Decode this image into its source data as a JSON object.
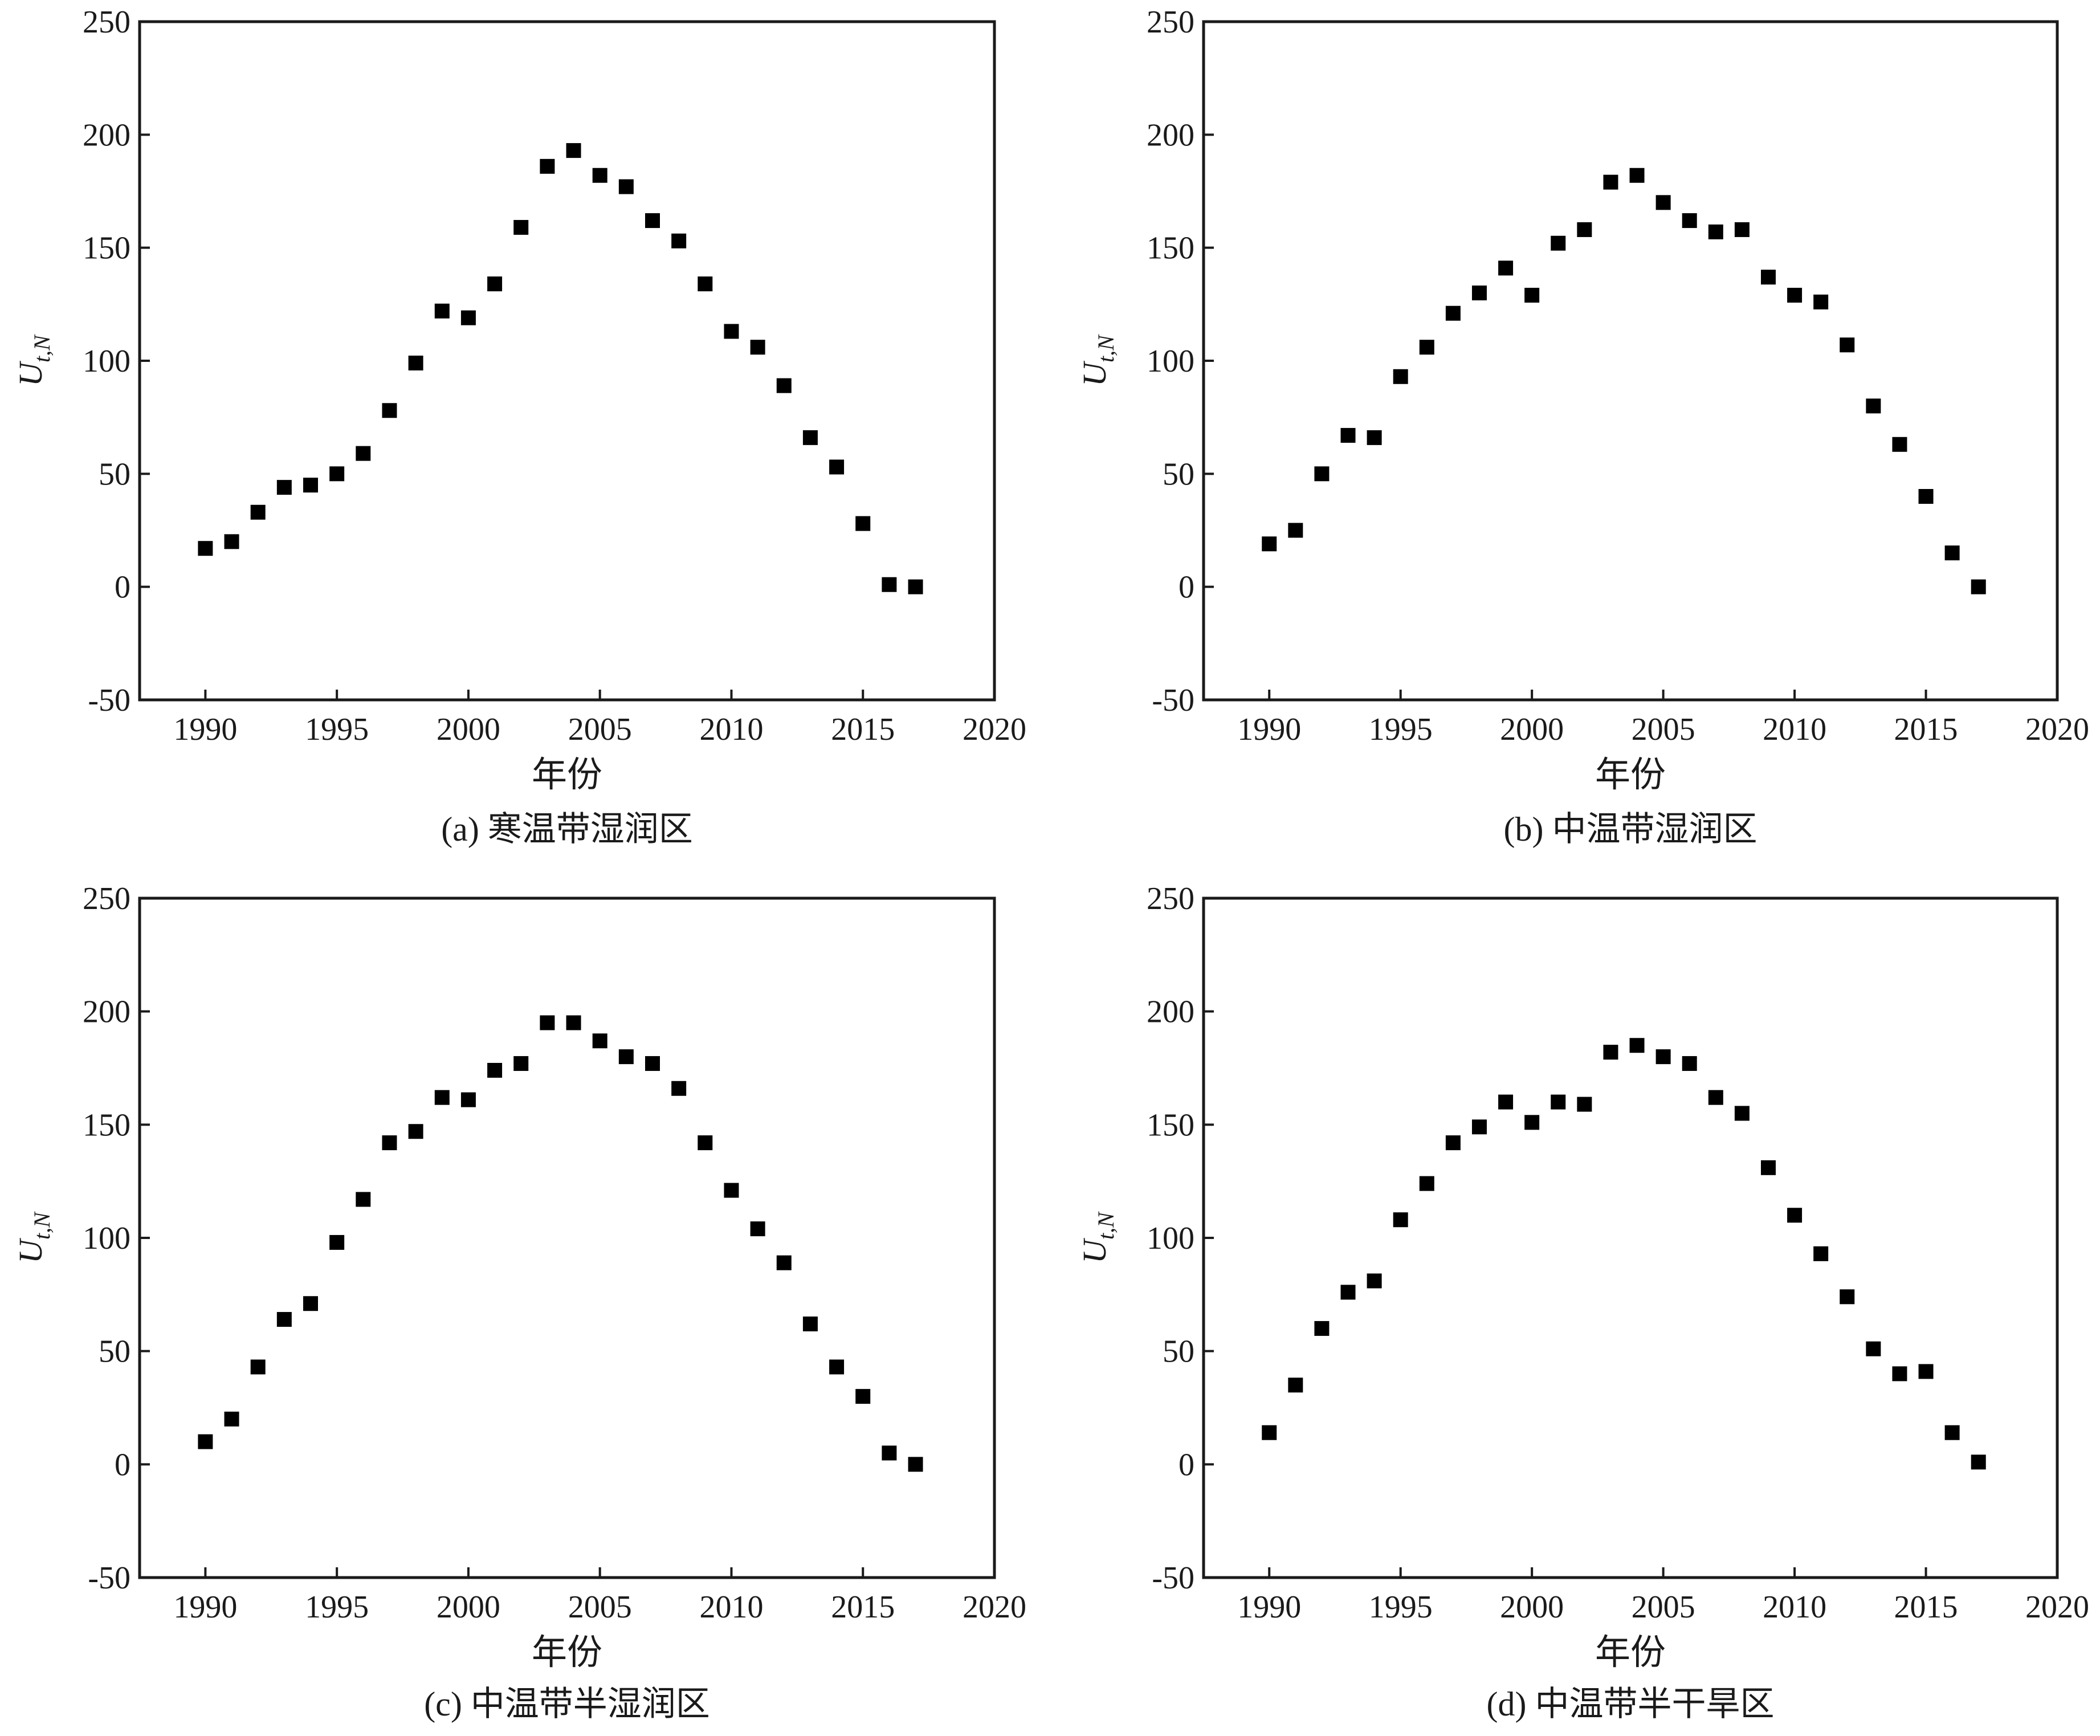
{
  "figure": {
    "colors": {
      "axis": "#1a1a1a",
      "marker": "#000000",
      "background": "#ffffff"
    }
  },
  "chart_data": [
    {
      "type": "scatter",
      "caption": "(a) 寒温带湿润区",
      "xlabel": "年份",
      "ylabel_main": "U",
      "ylabel_sub": "t,N",
      "xlim": [
        1987.5,
        2020
      ],
      "ylim": [
        -50,
        250
      ],
      "xticks": [
        1990,
        1995,
        2000,
        2005,
        2010,
        2015,
        2020
      ],
      "yticks": [
        -50,
        0,
        50,
        100,
        150,
        200,
        250
      ],
      "grid": false,
      "x": [
        1990,
        1991,
        1992,
        1993,
        1994,
        1995,
        1996,
        1997,
        1998,
        1999,
        2000,
        2001,
        2002,
        2003,
        2004,
        2005,
        2006,
        2007,
        2008,
        2009,
        2010,
        2011,
        2012,
        2013,
        2014,
        2015,
        2016,
        2017
      ],
      "y": [
        17,
        20,
        33,
        44,
        45,
        50,
        59,
        78,
        99,
        122,
        119,
        134,
        159,
        186,
        193,
        182,
        177,
        162,
        153,
        134,
        113,
        106,
        89,
        66,
        53,
        28,
        1,
        0
      ]
    },
    {
      "type": "scatter",
      "caption": "(b) 中温带湿润区",
      "xlabel": "年份",
      "ylabel_main": "U",
      "ylabel_sub": "t,N",
      "xlim": [
        1987.5,
        2020
      ],
      "ylim": [
        -50,
        250
      ],
      "xticks": [
        1990,
        1995,
        2000,
        2005,
        2010,
        2015,
        2020
      ],
      "yticks": [
        -50,
        0,
        50,
        100,
        150,
        200,
        250
      ],
      "grid": false,
      "x": [
        1990,
        1991,
        1992,
        1993,
        1994,
        1995,
        1996,
        1997,
        1998,
        1999,
        2000,
        2001,
        2002,
        2003,
        2004,
        2005,
        2006,
        2007,
        2008,
        2009,
        2010,
        2011,
        2012,
        2013,
        2014,
        2015,
        2016,
        2017
      ],
      "y": [
        19,
        25,
        50,
        67,
        66,
        93,
        106,
        121,
        130,
        141,
        129,
        152,
        158,
        179,
        182,
        170,
        162,
        157,
        158,
        137,
        129,
        126,
        107,
        80,
        63,
        40,
        15,
        0
      ]
    },
    {
      "type": "scatter",
      "caption": "(c) 中温带半湿润区",
      "xlabel": "年份",
      "ylabel_main": "U",
      "ylabel_sub": "t,N",
      "xlim": [
        1987.5,
        2020
      ],
      "ylim": [
        -50,
        250
      ],
      "xticks": [
        1990,
        1995,
        2000,
        2005,
        2010,
        2015,
        2020
      ],
      "yticks": [
        -50,
        0,
        50,
        100,
        150,
        200,
        250
      ],
      "grid": false,
      "x": [
        1990,
        1991,
        1992,
        1993,
        1994,
        1995,
        1996,
        1997,
        1998,
        1999,
        2000,
        2001,
        2002,
        2003,
        2004,
        2005,
        2006,
        2007,
        2008,
        2009,
        2010,
        2011,
        2012,
        2013,
        2014,
        2015,
        2016,
        2017
      ],
      "y": [
        10,
        20,
        43,
        64,
        71,
        98,
        117,
        142,
        147,
        162,
        161,
        174,
        177,
        195,
        195,
        187,
        180,
        177,
        166,
        142,
        121,
        104,
        89,
        62,
        43,
        30,
        5,
        0
      ]
    },
    {
      "type": "scatter",
      "caption": "(d) 中温带半干旱区",
      "xlabel": "年份",
      "ylabel_main": "U",
      "ylabel_sub": "t,N",
      "xlim": [
        1987.5,
        2020
      ],
      "ylim": [
        -50,
        250
      ],
      "xticks": [
        1990,
        1995,
        2000,
        2005,
        2010,
        2015,
        2020
      ],
      "yticks": [
        -50,
        0,
        50,
        100,
        150,
        200,
        250
      ],
      "grid": false,
      "x": [
        1990,
        1991,
        1992,
        1993,
        1994,
        1995,
        1996,
        1997,
        1998,
        1999,
        2000,
        2001,
        2002,
        2003,
        2004,
        2005,
        2006,
        2007,
        2008,
        2009,
        2010,
        2011,
        2012,
        2013,
        2014,
        2015,
        2016,
        2017
      ],
      "y": [
        14,
        35,
        60,
        76,
        81,
        108,
        124,
        142,
        149,
        160,
        151,
        160,
        159,
        182,
        185,
        180,
        177,
        162,
        155,
        131,
        110,
        93,
        74,
        51,
        40,
        41,
        14,
        1
      ]
    }
  ]
}
